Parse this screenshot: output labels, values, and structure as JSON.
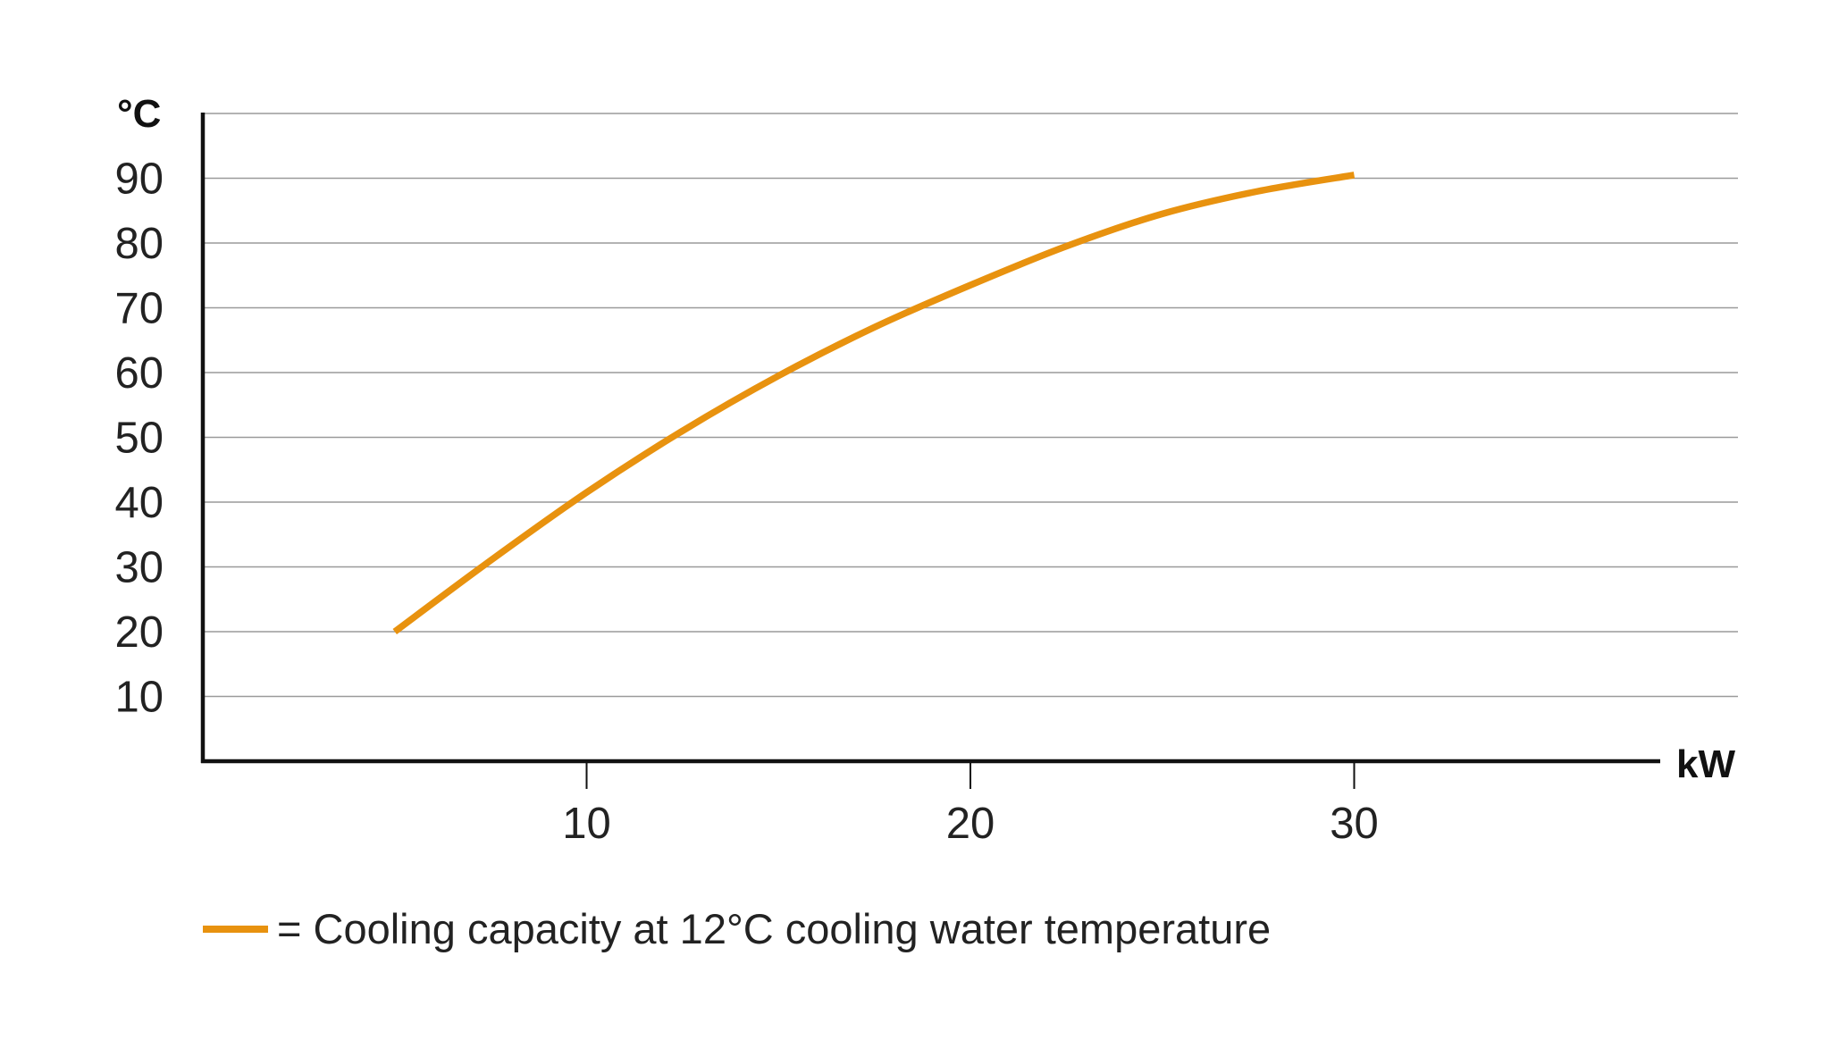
{
  "chart_data": {
    "type": "line",
    "title": "",
    "xlabel": "kW",
    "ylabel": "°C",
    "xlim": [
      0,
      38
    ],
    "ylim": [
      0,
      100
    ],
    "x_ticks": [
      10,
      20,
      30
    ],
    "y_ticks": [
      10,
      20,
      30,
      40,
      50,
      60,
      70,
      80,
      90
    ],
    "grid": "horizontal",
    "legend_position": "bottom-left",
    "series": [
      {
        "name": "= Cooling capacity at 12°C cooling water temperature",
        "color": "#e8920f",
        "x": [
          5,
          7.5,
          10,
          12.5,
          15,
          17.5,
          20,
          22.5,
          25,
          27.5,
          30
        ],
        "y": [
          20,
          31,
          41.5,
          51,
          59.5,
          67,
          73.5,
          79.5,
          84.5,
          88,
          90.5
        ]
      }
    ]
  }
}
